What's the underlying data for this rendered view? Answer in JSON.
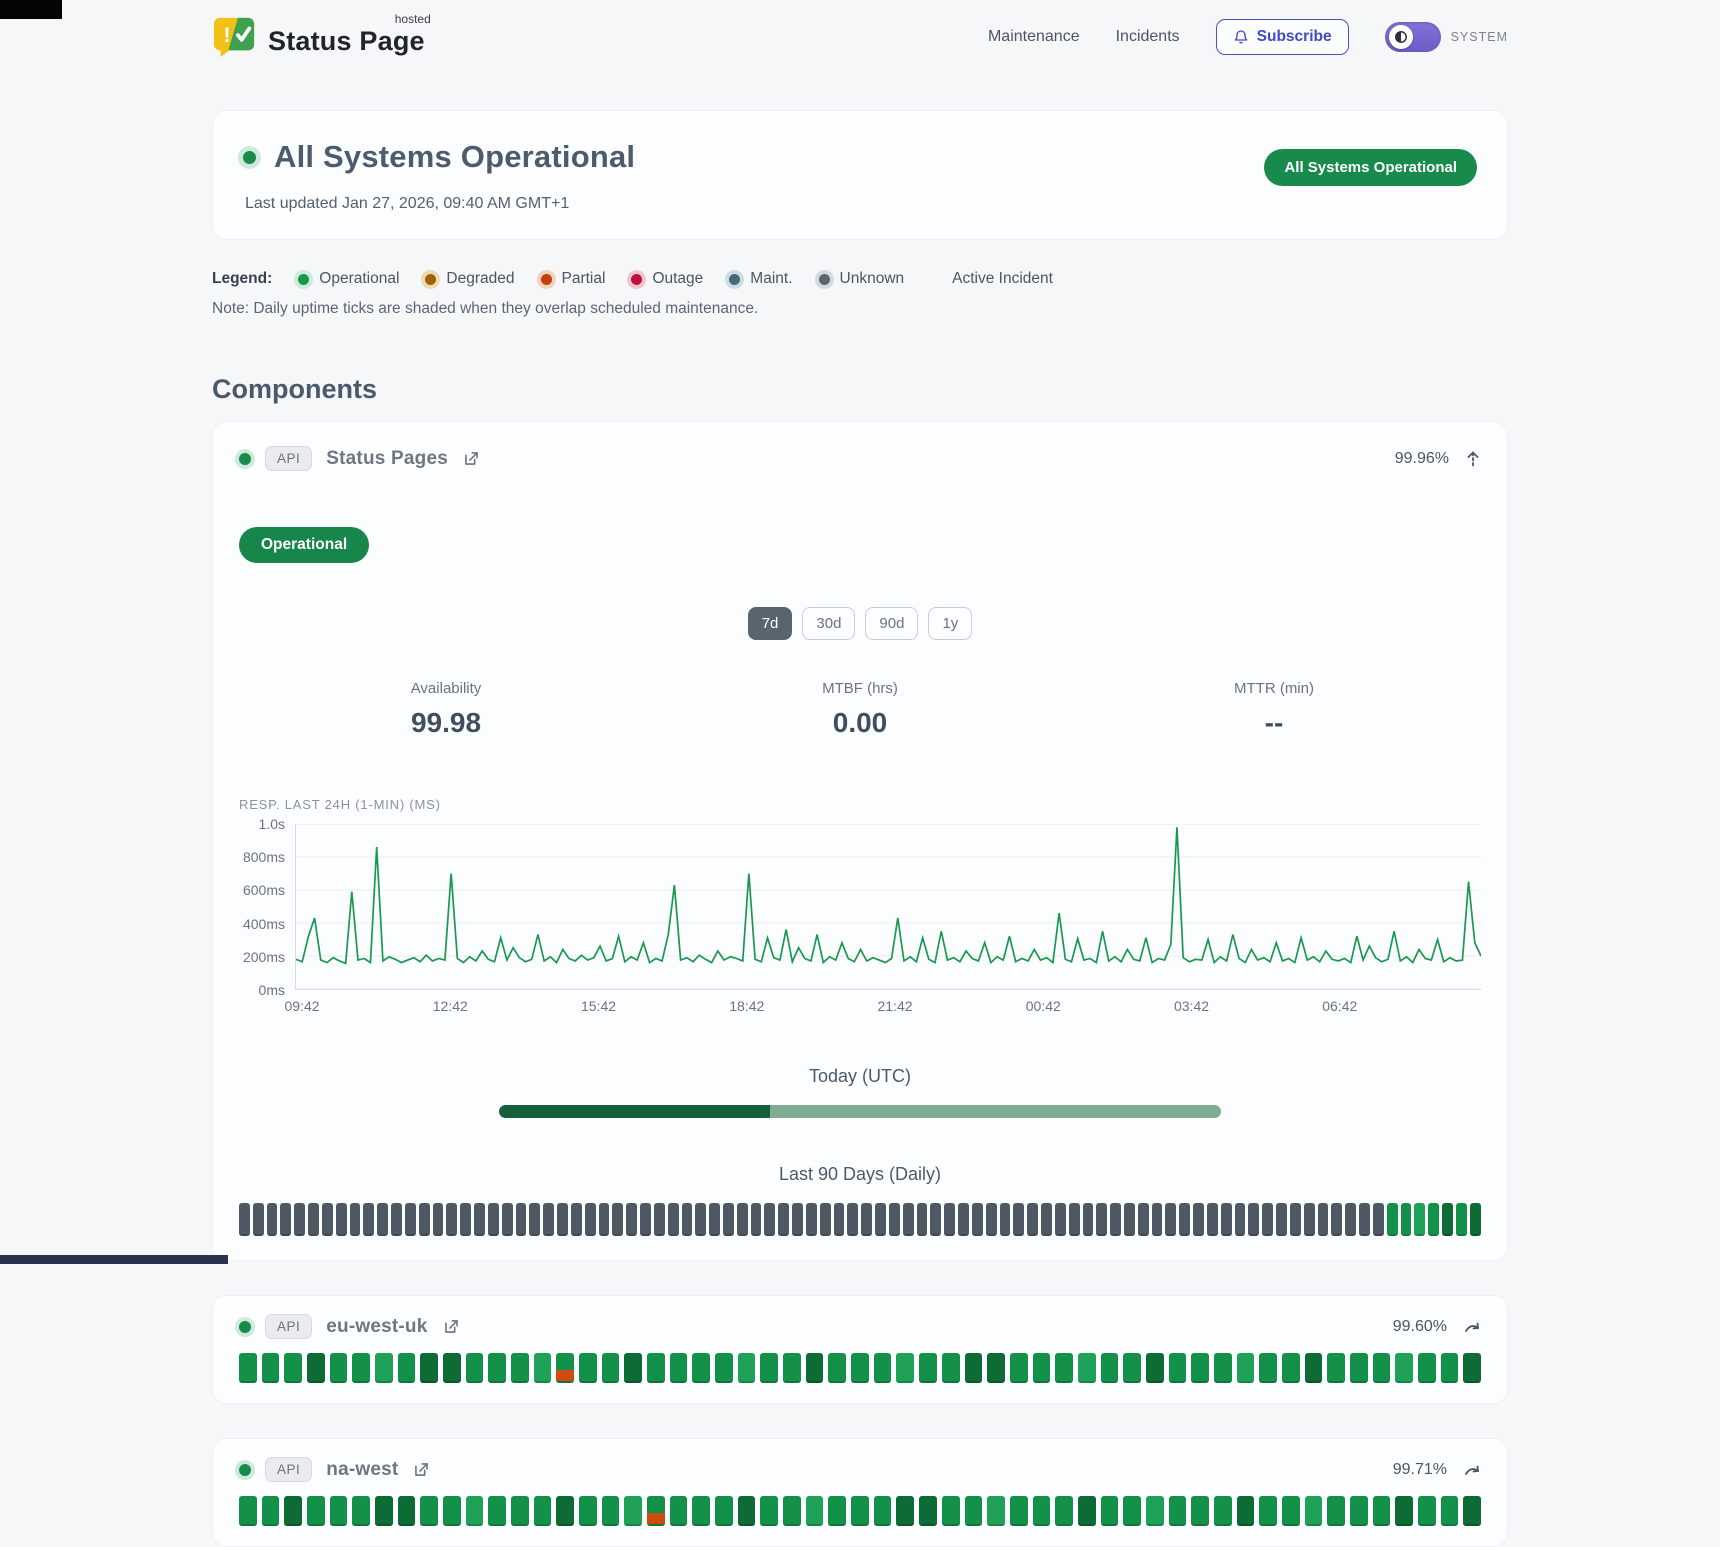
{
  "header": {
    "brand": "Status Page",
    "brand_sup": "hosted",
    "nav": [
      {
        "id": "maintenance",
        "label": "Maintenance"
      },
      {
        "id": "incidents",
        "label": "Incidents"
      }
    ],
    "subscribe_label": "Subscribe",
    "theme_label": "SYSTEM"
  },
  "hero": {
    "title": "All Systems Operational",
    "updated": "Last updated Jan 27, 2026, 09:40 AM GMT+1",
    "badge": "All Systems Operational"
  },
  "legend": {
    "label": "Legend:",
    "items": [
      {
        "id": "operational",
        "label": "Operational",
        "color": "#16984e",
        "ring": "#cdeada"
      },
      {
        "id": "degraded",
        "label": "Degraded",
        "color": "#a16207",
        "ring": "#ecdcb4"
      },
      {
        "id": "partial",
        "label": "Partial",
        "color": "#c2410c",
        "ring": "#f3d3be"
      },
      {
        "id": "outage",
        "label": "Outage",
        "color": "#be123c",
        "ring": "#f2c6d0"
      },
      {
        "id": "maint",
        "label": "Maint.",
        "color": "#47697a",
        "ring": "#ccdde6"
      },
      {
        "id": "unknown",
        "label": "Unknown",
        "color": "#5b6670",
        "ring": "#d5dade"
      }
    ],
    "active_incident": "Active Incident",
    "note": "Note: Daily uptime ticks are shaded when they overlap scheduled maintenance."
  },
  "components_heading": "Components",
  "component": {
    "tag": "API",
    "name": "Status Pages",
    "uptime": "99.96%",
    "status_badge": "Operational",
    "ranges": [
      "7d",
      "30d",
      "90d",
      "1y"
    ],
    "selected_range": "7d",
    "stats": [
      {
        "label": "Availability",
        "value": "99.98"
      },
      {
        "label": "MTBF (hrs)",
        "value": "0.00"
      },
      {
        "label": "MTTR (min)",
        "value": "--"
      }
    ],
    "today_label": "Today (UTC)",
    "today_progress_pct": 37.5,
    "ninety_label": "Last 90 Days (Daily)",
    "ninety_ticks_runs": [
      [
        "u",
        83
      ],
      [
        "g2",
        2
      ],
      [
        "g3",
        1
      ],
      [
        "g2",
        1
      ],
      [
        "g1",
        1
      ],
      [
        "g2",
        1
      ],
      [
        "g1",
        1
      ]
    ]
  },
  "chart_data": {
    "type": "line",
    "title": "RESP. LAST 24H (1-MIN) (MS)",
    "x_tick_labels": [
      "09:42",
      "12:42",
      "15:42",
      "18:42",
      "21:42",
      "00:42",
      "03:42",
      "06:42"
    ],
    "y_tick_labels": [
      "1.0s",
      "800ms",
      "600ms",
      "400ms",
      "200ms",
      "0ms"
    ],
    "ylim": [
      0,
      1000
    ],
    "unit": "ms",
    "line_color": "#18994f",
    "grid": true,
    "legend_position": "none",
    "values": [
      180,
      165,
      320,
      430,
      175,
      160,
      190,
      170,
      155,
      590,
      175,
      185,
      160,
      860,
      170,
      195,
      180,
      160,
      175,
      190,
      165,
      205,
      170,
      185,
      175,
      700,
      185,
      160,
      195,
      170,
      230,
      180,
      165,
      310,
      175,
      250,
      190,
      165,
      180,
      330,
      170,
      195,
      160,
      240,
      185,
      170,
      205,
      175,
      190,
      260,
      170,
      185,
      320,
      165,
      195,
      175,
      280,
      160,
      185,
      170,
      330,
      630,
      175,
      190,
      165,
      205,
      180,
      160,
      230,
      175,
      195,
      185,
      170,
      700,
      180,
      165,
      310,
      190,
      175,
      360,
      165,
      250,
      185,
      170,
      330,
      160,
      195,
      175,
      280,
      185,
      165,
      240,
      170,
      190,
      175,
      160,
      185,
      430,
      170,
      195,
      165,
      310,
      180,
      160,
      350,
      175,
      190,
      165,
      230,
      185,
      170,
      280,
      160,
      195,
      175,
      320,
      165,
      185,
      170,
      240,
      175,
      190,
      160,
      460,
      180,
      165,
      305,
      175,
      185,
      160,
      350,
      170,
      195,
      165,
      240,
      180,
      170,
      310,
      160,
      185,
      175,
      270,
      980,
      190,
      165,
      180,
      175,
      300,
      160,
      195,
      170,
      330,
      185,
      160,
      240,
      175,
      190,
      165,
      280,
      170,
      185,
      160,
      310,
      175,
      195,
      165,
      230,
      180,
      170,
      185,
      160,
      320,
      175,
      260,
      190,
      165,
      180,
      350,
      170,
      195,
      160,
      240,
      185,
      175,
      300,
      165,
      190,
      170,
      175,
      650,
      280,
      200
    ]
  },
  "sub_components": [
    {
      "tag": "API",
      "name": "eu-west-uk",
      "uptime": "99.60%",
      "ticks_runs": [
        [
          "g2",
          3
        ],
        [
          "g1",
          1
        ],
        [
          "g2",
          2
        ],
        [
          "g3",
          1
        ],
        [
          "g2",
          1
        ],
        [
          "g1",
          2
        ],
        [
          "g2",
          3
        ],
        [
          "g3",
          1
        ],
        [
          "p",
          1
        ],
        [
          "g2",
          2
        ],
        [
          "g1",
          1
        ],
        [
          "g2",
          4
        ],
        [
          "g3",
          1
        ],
        [
          "g2",
          2
        ],
        [
          "g1",
          1
        ],
        [
          "g2",
          3
        ],
        [
          "g3",
          1
        ],
        [
          "g2",
          2
        ],
        [
          "g1",
          2
        ],
        [
          "g2",
          3
        ],
        [
          "g3",
          1
        ],
        [
          "g2",
          2
        ],
        [
          "g1",
          1
        ],
        [
          "g2",
          3
        ],
        [
          "g3",
          1
        ],
        [
          "g2",
          2
        ],
        [
          "g1",
          1
        ],
        [
          "g2",
          3
        ],
        [
          "g3",
          1
        ],
        [
          "g2",
          2
        ],
        [
          "g1",
          1
        ]
      ]
    },
    {
      "tag": "API",
      "name": "na-west",
      "uptime": "99.71%",
      "ticks_runs": [
        [
          "g2",
          2
        ],
        [
          "g1",
          1
        ],
        [
          "g2",
          3
        ],
        [
          "g1",
          2
        ],
        [
          "g2",
          2
        ],
        [
          "g3",
          1
        ],
        [
          "g2",
          3
        ],
        [
          "g1",
          1
        ],
        [
          "g2",
          2
        ],
        [
          "g3",
          1
        ],
        [
          "p",
          1
        ],
        [
          "g2",
          3
        ],
        [
          "g1",
          1
        ],
        [
          "g2",
          2
        ],
        [
          "g3",
          1
        ],
        [
          "g2",
          3
        ],
        [
          "g1",
          2
        ],
        [
          "g2",
          2
        ],
        [
          "g3",
          1
        ],
        [
          "g2",
          3
        ],
        [
          "g1",
          1
        ],
        [
          "g2",
          2
        ],
        [
          "g3",
          1
        ],
        [
          "g2",
          3
        ],
        [
          "g1",
          1
        ],
        [
          "g2",
          2
        ],
        [
          "g3",
          1
        ],
        [
          "g2",
          3
        ],
        [
          "g1",
          1
        ],
        [
          "g2",
          2
        ],
        [
          "g1",
          1
        ]
      ]
    }
  ]
}
